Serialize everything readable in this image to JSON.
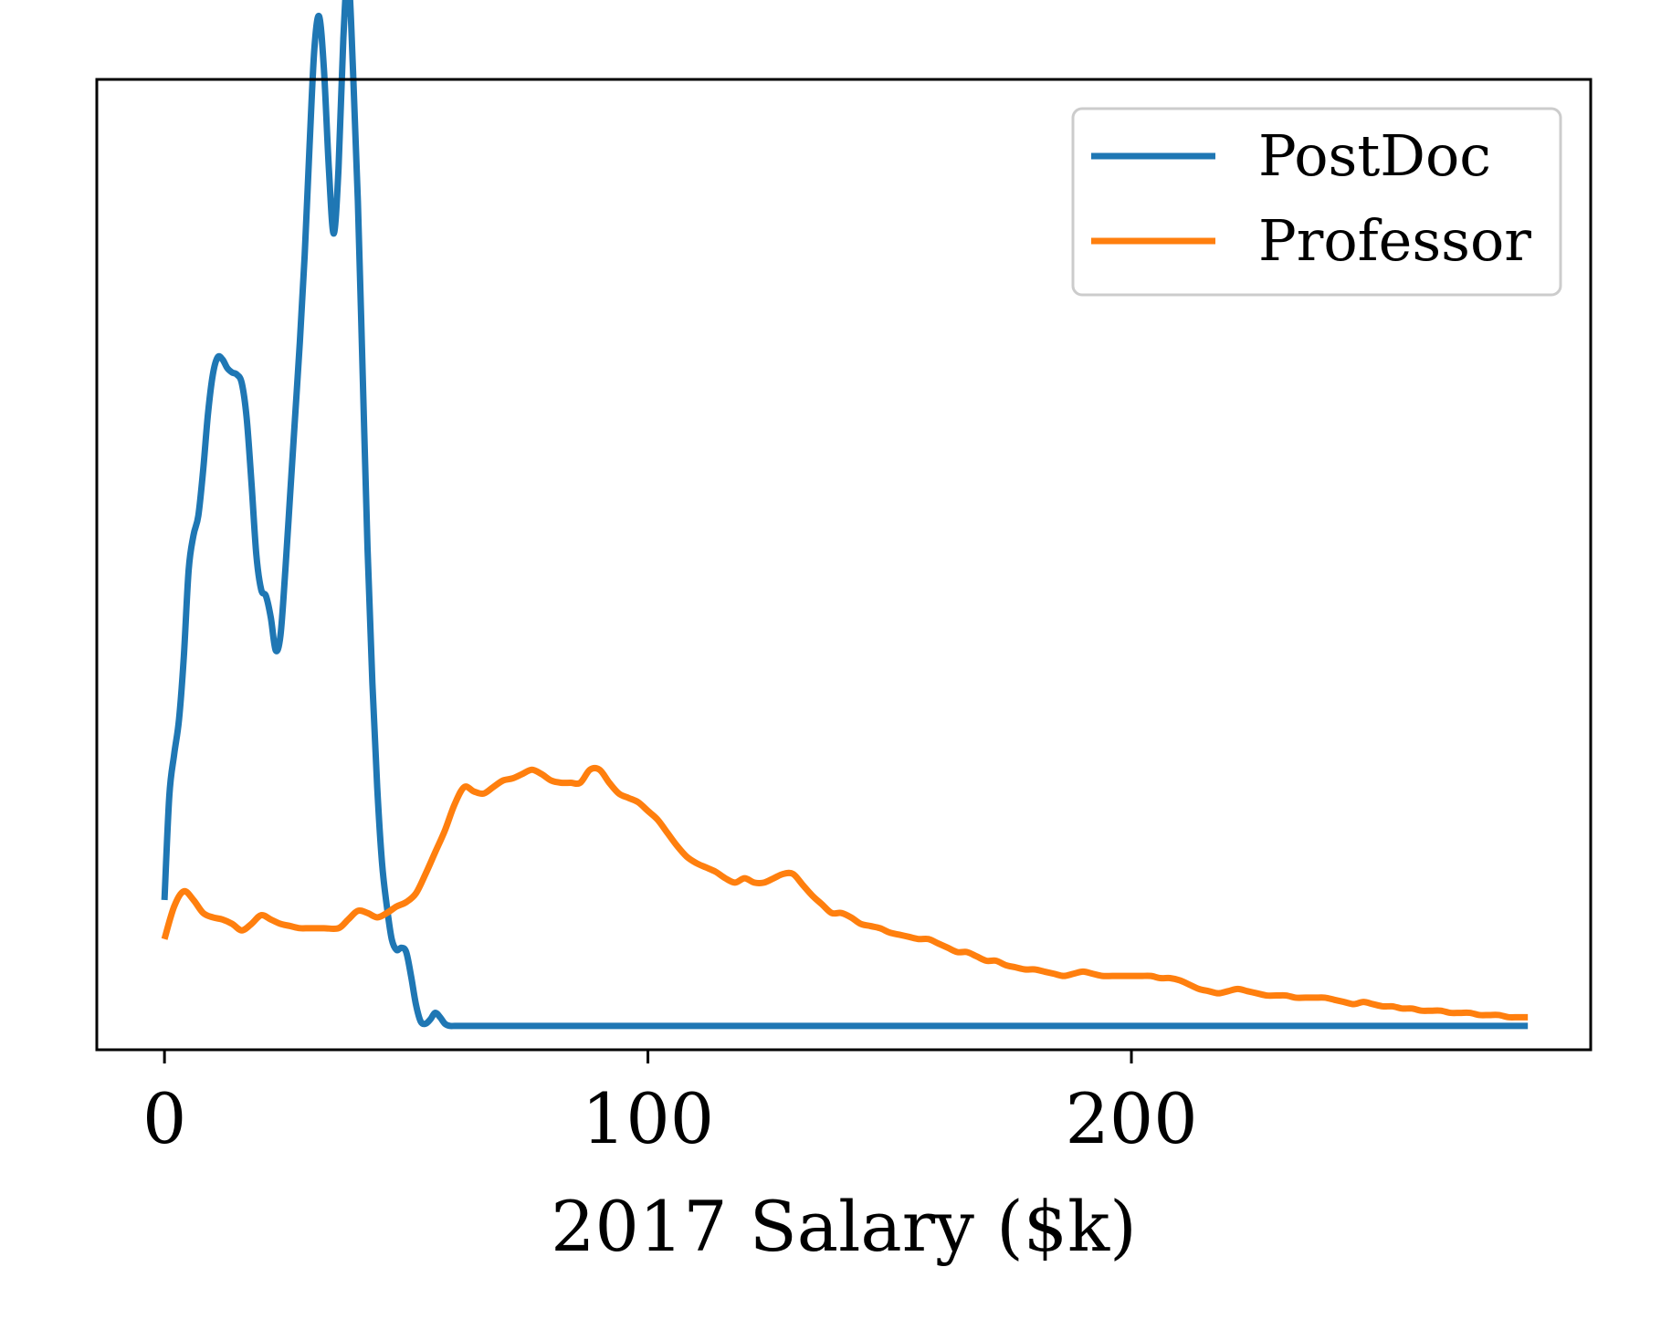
{
  "chart_data": {
    "type": "line",
    "title": "",
    "xlabel": "2017 Salary ($k)",
    "ylabel": "",
    "xlim": [
      -14,
      295
    ],
    "ylim": [
      -0.0011,
      0.0436
    ],
    "xticks": [
      0,
      100,
      200
    ],
    "xtick_labels": [
      "0",
      "100",
      "200"
    ],
    "yticks_shown": false,
    "grid": false,
    "legend": {
      "position": "top-right"
    },
    "series": [
      {
        "name": "PostDoc",
        "color": "#1f77b4",
        "x": [
          0,
          1,
          2,
          3,
          4,
          5,
          6,
          7,
          8,
          9,
          10,
          11,
          12,
          13,
          14,
          15,
          16,
          17,
          18,
          19,
          20,
          21,
          22,
          23,
          24,
          25,
          26,
          27,
          28,
          29,
          30,
          31,
          32,
          33,
          34,
          35,
          36,
          37,
          38,
          39,
          40,
          41,
          42,
          43,
          44,
          45,
          46,
          47,
          48,
          49,
          50,
          51,
          52,
          53,
          54,
          55,
          56,
          57,
          58,
          59,
          60,
          61,
          62,
          63,
          64,
          65,
          66,
          67,
          68,
          69,
          70,
          72,
          74,
          76,
          80,
          100,
          150,
          200,
          250,
          282
        ],
        "y": [
          0.0058,
          0.0106,
          0.0125,
          0.0141,
          0.017,
          0.021,
          0.0226,
          0.0235,
          0.0256,
          0.0282,
          0.03,
          0.0308,
          0.0307,
          0.0303,
          0.0301,
          0.03,
          0.0296,
          0.028,
          0.025,
          0.0217,
          0.0201,
          0.0198,
          0.0188,
          0.0173,
          0.018,
          0.021,
          0.0245,
          0.028,
          0.0315,
          0.0355,
          0.0405,
          0.045,
          0.0465,
          0.044,
          0.0395,
          0.0365,
          0.0395,
          0.0455,
          0.0485,
          0.044,
          0.038,
          0.03,
          0.022,
          0.0158,
          0.011,
          0.0075,
          0.0055,
          0.004,
          0.0035,
          0.0036,
          0.0034,
          0.0023,
          0.001,
          0.0002,
          0.0001,
          0.0003,
          0.0006,
          0.0004,
          0.0001,
          0.0,
          0.0,
          0.0,
          0.0,
          0.0,
          0.0,
          0.0,
          0.0,
          0.0,
          0.0,
          0.0,
          0.0,
          0.0,
          0.0,
          0.0,
          0.0,
          0.0,
          0.0,
          0.0,
          0.0,
          0.0
        ]
      },
      {
        "name": "Professor",
        "color": "#ff7f0e",
        "x": [
          0,
          2,
          4,
          6,
          8,
          10,
          12,
          14,
          16,
          18,
          20,
          22,
          24,
          26,
          28,
          30,
          33,
          36,
          38,
          40,
          42,
          44,
          46,
          48,
          50,
          52,
          54,
          56,
          58,
          60,
          62,
          64,
          66,
          68,
          70,
          72,
          74,
          76,
          78,
          80,
          82,
          84,
          86,
          88,
          90,
          92,
          94,
          96,
          98,
          100,
          102,
          104,
          106,
          108,
          110,
          112,
          114,
          116,
          118,
          120,
          122,
          124,
          126,
          128,
          130,
          132,
          134,
          136,
          138,
          140,
          142,
          144,
          146,
          148,
          150,
          152,
          154,
          156,
          158,
          160,
          162,
          164,
          166,
          168,
          170,
          172,
          174,
          176,
          178,
          180,
          182,
          184,
          186,
          188,
          190,
          192,
          194,
          196,
          198,
          200,
          202,
          204,
          206,
          208,
          210,
          212,
          214,
          216,
          218,
          220,
          222,
          224,
          226,
          228,
          230,
          232,
          234,
          236,
          238,
          240,
          242,
          244,
          246,
          248,
          250,
          252,
          254,
          256,
          258,
          260,
          262,
          264,
          266,
          268,
          270,
          272,
          274,
          276,
          278,
          280,
          282
        ],
        "y": [
          0.004,
          0.0055,
          0.0062,
          0.0058,
          0.0052,
          0.005,
          0.0049,
          0.0047,
          0.0044,
          0.0047,
          0.0051,
          0.0049,
          0.0047,
          0.0046,
          0.0045,
          0.0045,
          0.0045,
          0.0045,
          0.0049,
          0.0053,
          0.0052,
          0.005,
          0.0052,
          0.0055,
          0.0057,
          0.0061,
          0.007,
          0.008,
          0.009,
          0.0102,
          0.011,
          0.0108,
          0.0107,
          0.011,
          0.0113,
          0.0114,
          0.0116,
          0.0118,
          0.0116,
          0.0113,
          0.0112,
          0.0112,
          0.0112,
          0.0118,
          0.0118,
          0.0112,
          0.0107,
          0.0105,
          0.0103,
          0.0099,
          0.0095,
          0.0089,
          0.0083,
          0.0078,
          0.0075,
          0.0073,
          0.0071,
          0.0068,
          0.0066,
          0.0068,
          0.0066,
          0.0066,
          0.0068,
          0.007,
          0.007,
          0.0065,
          0.006,
          0.0056,
          0.0052,
          0.0052,
          0.005,
          0.0047,
          0.0046,
          0.0045,
          0.0043,
          0.0042,
          0.0041,
          0.004,
          0.004,
          0.0038,
          0.0036,
          0.0034,
          0.0034,
          0.0032,
          0.003,
          0.003,
          0.0028,
          0.0027,
          0.0026,
          0.0026,
          0.0025,
          0.0024,
          0.0023,
          0.0024,
          0.0025,
          0.0024,
          0.0023,
          0.0023,
          0.0023,
          0.0023,
          0.0023,
          0.0023,
          0.0022,
          0.0022,
          0.0021,
          0.0019,
          0.0017,
          0.0016,
          0.0015,
          0.0016,
          0.0017,
          0.0016,
          0.0015,
          0.0014,
          0.0014,
          0.0014,
          0.0013,
          0.0013,
          0.0013,
          0.0013,
          0.0012,
          0.0011,
          0.001,
          0.0011,
          0.001,
          0.0009,
          0.0009,
          0.0008,
          0.0008,
          0.0007,
          0.0007,
          0.0007,
          0.0006,
          0.0006,
          0.0006,
          0.0005,
          0.0005,
          0.0005,
          0.0004,
          0.0004,
          0.0004
        ]
      }
    ]
  }
}
